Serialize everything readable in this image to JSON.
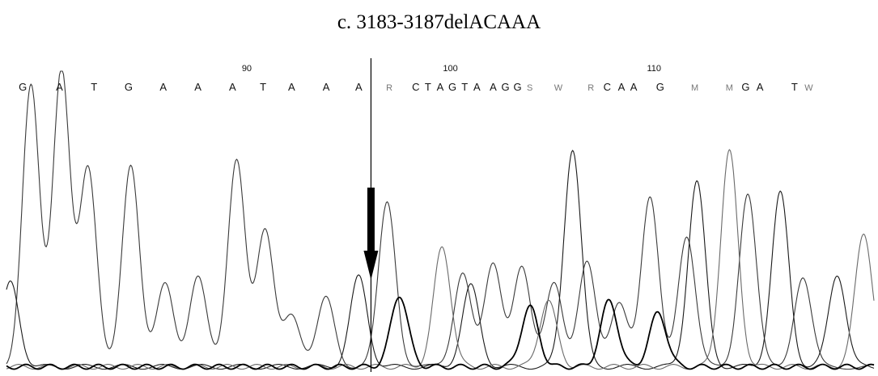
{
  "chart_data": {
    "type": "line",
    "title": "c. 3183-3187delACAAA",
    "xlabel": "",
    "ylabel": "",
    "grid": false,
    "legend": "none",
    "x_range": [
      78.2,
      120.8
    ],
    "y_range": [
      0,
      1
    ],
    "tick_labels": [
      {
        "pos": 90,
        "label": "90"
      },
      {
        "pos": 100,
        "label": "100"
      },
      {
        "pos": 110,
        "label": "110"
      }
    ],
    "base_calls": [
      {
        "pos": 79.0,
        "base": "G"
      },
      {
        "pos": 80.8,
        "base": "A"
      },
      {
        "pos": 82.5,
        "base": "T"
      },
      {
        "pos": 84.2,
        "base": "G"
      },
      {
        "pos": 85.9,
        "base": "A"
      },
      {
        "pos": 87.6,
        "base": "A"
      },
      {
        "pos": 89.3,
        "base": "A"
      },
      {
        "pos": 90.8,
        "base": "T"
      },
      {
        "pos": 92.2,
        "base": "A"
      },
      {
        "pos": 93.9,
        "base": "A"
      },
      {
        "pos": 95.5,
        "base": "A"
      },
      {
        "pos": 97.0,
        "base": "R"
      },
      {
        "pos": 98.3,
        "base": "C"
      },
      {
        "pos": 98.9,
        "base": "T"
      },
      {
        "pos": 99.5,
        "base": "A"
      },
      {
        "pos": 100.1,
        "base": "G"
      },
      {
        "pos": 100.7,
        "base": "T"
      },
      {
        "pos": 101.3,
        "base": "A"
      },
      {
        "pos": 102.1,
        "base": "A"
      },
      {
        "pos": 102.7,
        "base": "G"
      },
      {
        "pos": 103.3,
        "base": "G"
      },
      {
        "pos": 103.9,
        "base": "S"
      },
      {
        "pos": 105.3,
        "base": "W"
      },
      {
        "pos": 106.9,
        "base": "R"
      },
      {
        "pos": 107.7,
        "base": "C"
      },
      {
        "pos": 108.4,
        "base": "A"
      },
      {
        "pos": 109.0,
        "base": "A"
      },
      {
        "pos": 110.3,
        "base": "G"
      },
      {
        "pos": 112.0,
        "base": "M"
      },
      {
        "pos": 113.7,
        "base": "M"
      },
      {
        "pos": 114.5,
        "base": "G"
      },
      {
        "pos": 115.2,
        "base": "A"
      },
      {
        "pos": 116.9,
        "base": "T"
      },
      {
        "pos": 117.6,
        "base": "W"
      }
    ],
    "mutation_position": 96.1,
    "series": [
      {
        "color": "#3a3a3a",
        "peaks": [
          [
            79.4,
            0.94
          ],
          [
            80.9,
            1.0
          ],
          [
            82.2,
            0.66
          ],
          [
            84.3,
            0.68
          ],
          [
            86.0,
            0.28
          ],
          [
            87.6,
            0.3
          ],
          [
            89.5,
            0.7
          ],
          [
            90.9,
            0.45
          ],
          [
            92.2,
            0.18
          ],
          [
            93.9,
            0.23
          ],
          [
            96.9,
            0.55
          ],
          [
            100.6,
            0.32
          ],
          [
            102.1,
            0.34
          ],
          [
            103.5,
            0.34
          ],
          [
            105.1,
            0.28
          ],
          [
            106.7,
            0.35
          ],
          [
            108.3,
            0.22
          ],
          [
            109.8,
            0.56
          ],
          [
            111.6,
            0.44
          ],
          [
            114.6,
            0.58
          ],
          [
            117.3,
            0.3
          ]
        ]
      },
      {
        "color": "#1a1a1a",
        "peaks": [
          [
            78.4,
            0.28
          ],
          [
            95.5,
            0.3
          ],
          [
            101.0,
            0.27
          ],
          [
            106.0,
            0.73
          ],
          [
            112.1,
            0.62
          ],
          [
            116.2,
            0.58
          ],
          [
            119.0,
            0.31
          ]
        ]
      },
      {
        "color": "#6a6a6a",
        "peaks": [
          [
            99.6,
            0.4
          ],
          [
            104.8,
            0.22
          ],
          [
            113.7,
            0.72
          ],
          [
            120.3,
            0.45
          ]
        ]
      },
      {
        "color": "#000000",
        "peaks": [
          [
            97.5,
            0.24
          ],
          [
            103.9,
            0.2
          ],
          [
            107.8,
            0.22
          ],
          [
            110.2,
            0.18
          ]
        ]
      }
    ]
  }
}
